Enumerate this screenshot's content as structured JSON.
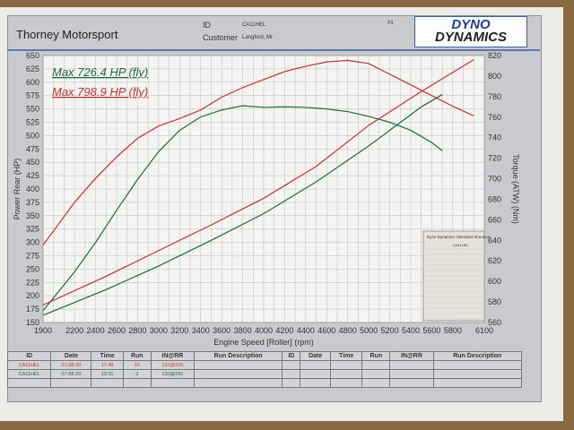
{
  "header": {
    "company": "Thorney Motorsport",
    "id_label": "ID",
    "id_value": "CA11HEL",
    "customer_label": "Customer",
    "customer_value": "Langford, Mr",
    "page_no": "#1",
    "logo_line1": "DYNO",
    "logo_line2": "DYNAMICS"
  },
  "legend": [
    {
      "text": "Max 726.4 HP (fly)",
      "color": "#1e6b3a"
    },
    {
      "text": "Max 798.9 HP (fly)",
      "color": "#c9302c"
    }
  ],
  "stock_box": {
    "title": "Dyno Dynamics Standard Shootout",
    "vehicle": "CA11HEL"
  },
  "table": {
    "headers": [
      "ID",
      "Date",
      "Time",
      "Run",
      "IN@RR",
      "Run Description",
      "ID",
      "Date",
      "Time",
      "Run",
      "IN@RR",
      "Run Description"
    ],
    "rows": [
      {
        "id": "CA11HEL",
        "date": "21-08-20",
        "time": "17:48",
        "run": "10",
        "inrr": "120@200",
        "color": "#c9302c"
      },
      {
        "id": "CA11HEL",
        "date": "07-08-20",
        "time": "13:31",
        "run": "3",
        "inrr": "120@200",
        "color": "#1e6b3a"
      }
    ]
  },
  "chart_data": {
    "type": "line",
    "xlabel": "Engine Speed [Roller] (rpm)",
    "ylabel": "Power Rear (HP)",
    "y2label": "Torque (ATW) (Nm)",
    "xlim": [
      1900,
      6100
    ],
    "ylim": [
      150,
      650
    ],
    "y2lim": [
      560,
      820
    ],
    "xticks": [
      1900,
      2200,
      2400,
      2600,
      2800,
      3000,
      3200,
      3400,
      3600,
      3800,
      4000,
      4200,
      4400,
      4600,
      4800,
      5000,
      5200,
      5400,
      5600,
      5800,
      6100
    ],
    "yticks": [
      150,
      175,
      200,
      225,
      250,
      275,
      300,
      325,
      350,
      375,
      400,
      425,
      450,
      475,
      500,
      525,
      550,
      575,
      600,
      625,
      650
    ],
    "y2ticks": [
      560,
      580,
      600,
      620,
      640,
      660,
      680,
      700,
      720,
      740,
      760,
      780,
      800,
      820
    ],
    "grid": true,
    "series": [
      {
        "name": "Max 798.9 HP (fly)",
        "kind": "power",
        "axis": "left",
        "color": "#c9302c",
        "x": [
          1900,
          2200,
          2400,
          2600,
          2800,
          3000,
          3200,
          3400,
          3600,
          3800,
          4000,
          4200,
          4400,
          4600,
          4800,
          5000,
          5200,
          5400,
          5600,
          5800,
          6000
        ],
        "y": [
          295,
          375,
          420,
          460,
          495,
          518,
          532,
          548,
          572,
          590,
          605,
          620,
          630,
          638,
          641,
          635,
          615,
          595,
          575,
          555,
          537
        ]
      },
      {
        "name": "Max 726.4 HP (fly)",
        "kind": "power",
        "axis": "left",
        "color": "#1e6b3a",
        "x": [
          1900,
          2200,
          2400,
          2600,
          2800,
          3000,
          3200,
          3400,
          3600,
          3800,
          4000,
          4200,
          4400,
          4600,
          4800,
          5000,
          5200,
          5400,
          5600,
          5700
        ],
        "y": [
          172,
          245,
          300,
          360,
          418,
          470,
          510,
          535,
          548,
          556,
          553,
          554,
          553,
          550,
          545,
          536,
          525,
          510,
          487,
          472
        ]
      },
      {
        "name": "Max 798.9 HP (fly)",
        "kind": "torque",
        "axis": "right",
        "color": "#c9302c",
        "x": [
          1900,
          2500,
          3000,
          3500,
          4000,
          4500,
          5000,
          5500,
          6000
        ],
        "y": [
          577,
          605,
          630,
          655,
          681,
          712,
          752,
          785,
          816
        ]
      },
      {
        "name": "Max 726.4 HP (fly)",
        "kind": "torque",
        "axis": "right",
        "color": "#1e6b3a",
        "x": [
          1900,
          2500,
          3000,
          3500,
          4000,
          4500,
          5000,
          5500,
          5700
        ],
        "y": [
          567,
          592,
          615,
          640,
          666,
          697,
          732,
          770,
          782
        ]
      }
    ]
  }
}
